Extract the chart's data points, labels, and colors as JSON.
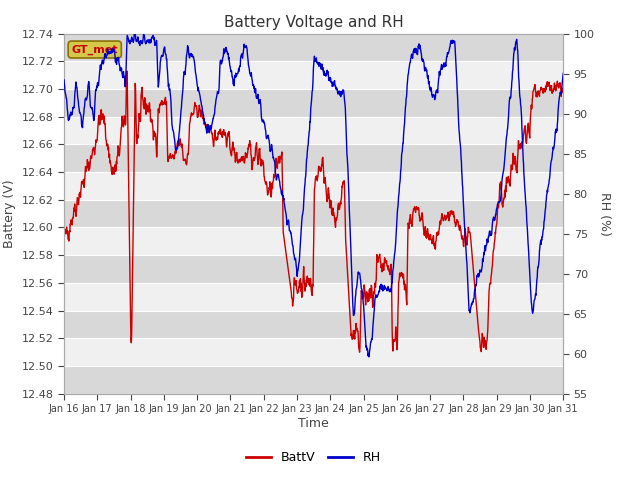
{
  "title": "Battery Voltage and RH",
  "xlabel": "Time",
  "ylabel_left": "Battery (V)",
  "ylabel_right": "RH (%)",
  "annotation": "GT_met",
  "ylim_left": [
    12.48,
    12.74
  ],
  "ylim_right": [
    55,
    100
  ],
  "yticks_left": [
    12.48,
    12.5,
    12.52,
    12.54,
    12.56,
    12.58,
    12.6,
    12.62,
    12.64,
    12.66,
    12.68,
    12.7,
    12.72,
    12.74
  ],
  "yticks_right": [
    55,
    60,
    65,
    70,
    75,
    80,
    85,
    90,
    95,
    100
  ],
  "xtick_labels": [
    "Jan 16",
    "Jan 17",
    "Jan 18",
    "Jan 19",
    "Jan 20",
    "Jan 21",
    "Jan 22",
    "Jan 23",
    "Jan 24",
    "Jan 25",
    "Jan 26",
    "Jan 27",
    "Jan 28",
    "Jan 29",
    "Jan 30",
    "Jan 31"
  ],
  "color_battv": "#cc0000",
  "color_rh": "#0000cc",
  "background_color": "#ffffff",
  "plot_bg_light": "#f0f0f0",
  "plot_bg_dark": "#d8d8d8",
  "legend_battv": "BattV",
  "legend_rh": "RH",
  "title_fontsize": 11,
  "axis_label_fontsize": 9,
  "tick_fontsize": 8,
  "annotation_bg": "#d4c84a",
  "annotation_border": "#8b7000",
  "grid_color": "#ffffff",
  "grid_linewidth": 0.8,
  "line_width": 1.0
}
